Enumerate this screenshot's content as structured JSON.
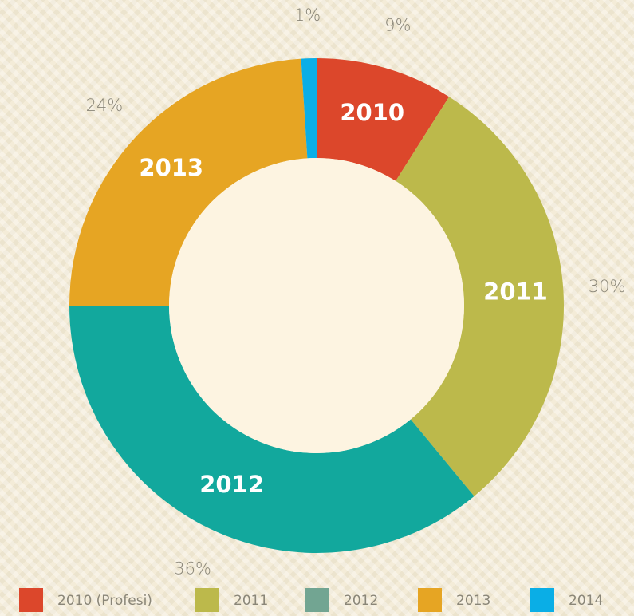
{
  "chart_data": {
    "type": "donut",
    "categories": [
      "2010 (Profesi)",
      "2011",
      "2012",
      "2013",
      "2014"
    ],
    "segment_labels": [
      "2010",
      "2011",
      "2012",
      "2013",
      null
    ],
    "values": [
      9,
      30,
      36,
      24,
      1
    ],
    "value_labels": [
      "9%",
      "30%",
      "36%",
      "24%",
      "1%"
    ],
    "colors": [
      "#dc472b",
      "#bcb94b",
      "#12a89d",
      "#e6a523",
      "#0aaee6"
    ],
    "legend_colors": [
      "#dc472b",
      "#bcb94b",
      "#72a592",
      "#e6a523",
      "#0aaee6"
    ],
    "legend": "bottom"
  }
}
